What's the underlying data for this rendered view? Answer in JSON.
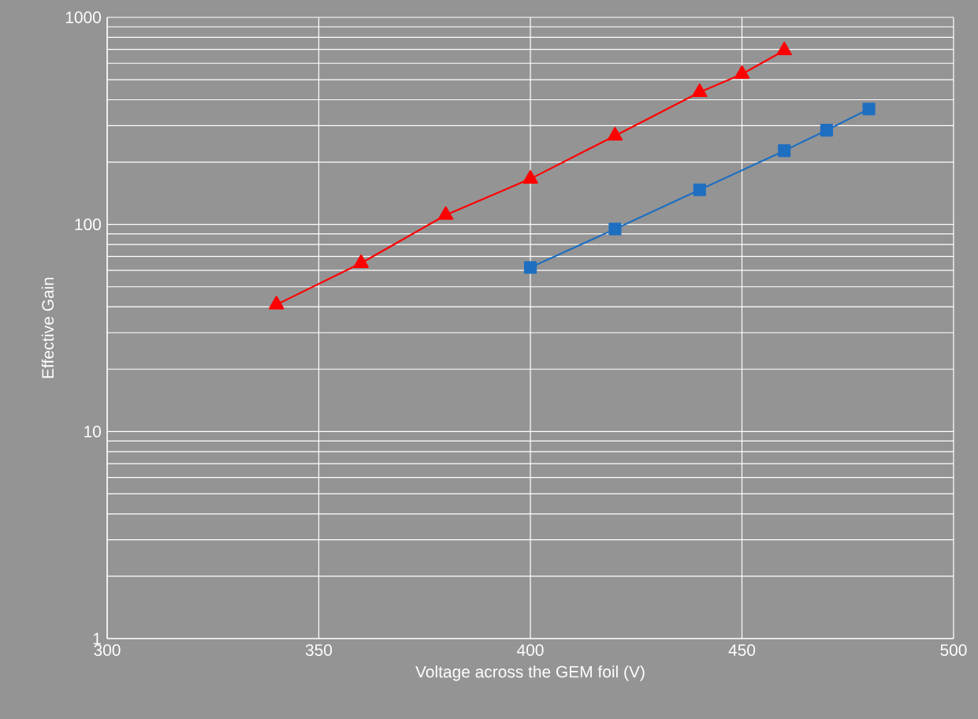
{
  "chart_data": {
    "type": "line",
    "xlabel": "Voltage across the GEM foil (V)",
    "ylabel": "Effective Gain",
    "xlim": [
      300,
      500
    ],
    "xticks": [
      300,
      350,
      400,
      450,
      500
    ],
    "ylim": [
      1,
      1000
    ],
    "yticks": [
      1,
      10,
      100,
      1000
    ],
    "log": "y",
    "grid": true,
    "series": [
      {
        "color": "#ff0000",
        "marker": "triangle",
        "x": [
          340,
          360,
          380,
          400,
          420,
          440,
          450,
          460
        ],
        "values": [
          41,
          65,
          111,
          166,
          268,
          435,
          532,
          692
        ]
      },
      {
        "color": "#1f6fc0",
        "marker": "square",
        "x": [
          400,
          420,
          440,
          460,
          470,
          480
        ],
        "values": [
          62,
          95,
          147,
          227,
          285,
          361
        ]
      }
    ]
  }
}
